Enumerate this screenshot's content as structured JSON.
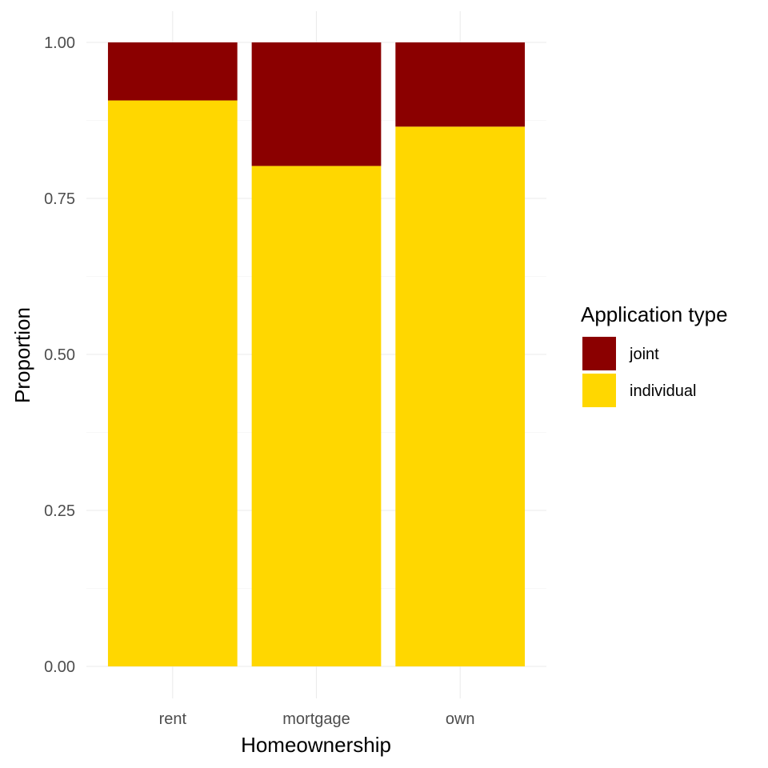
{
  "chart_data": {
    "type": "bar",
    "stacked": true,
    "xlabel": "Homeownership",
    "ylabel": "Proportion",
    "categories": [
      "rent",
      "mortgage",
      "own"
    ],
    "series": [
      {
        "name": "individual",
        "color": "#FFD700",
        "values": [
          0.907,
          0.802,
          0.865
        ]
      },
      {
        "name": "joint",
        "color": "#8B0000",
        "values": [
          0.093,
          0.198,
          0.135
        ]
      }
    ],
    "ylim": [
      0,
      1
    ],
    "yticks": [
      0,
      0.25,
      0.5,
      0.75,
      1
    ],
    "ytick_labels": [
      "0.00",
      "0.25",
      "0.50",
      "0.75",
      "1.00"
    ],
    "grid": true,
    "legend": {
      "title": "Application type",
      "position": "right",
      "entries": [
        {
          "label": "joint",
          "color": "#8B0000"
        },
        {
          "label": "individual",
          "color": "#FFD700"
        }
      ]
    }
  }
}
